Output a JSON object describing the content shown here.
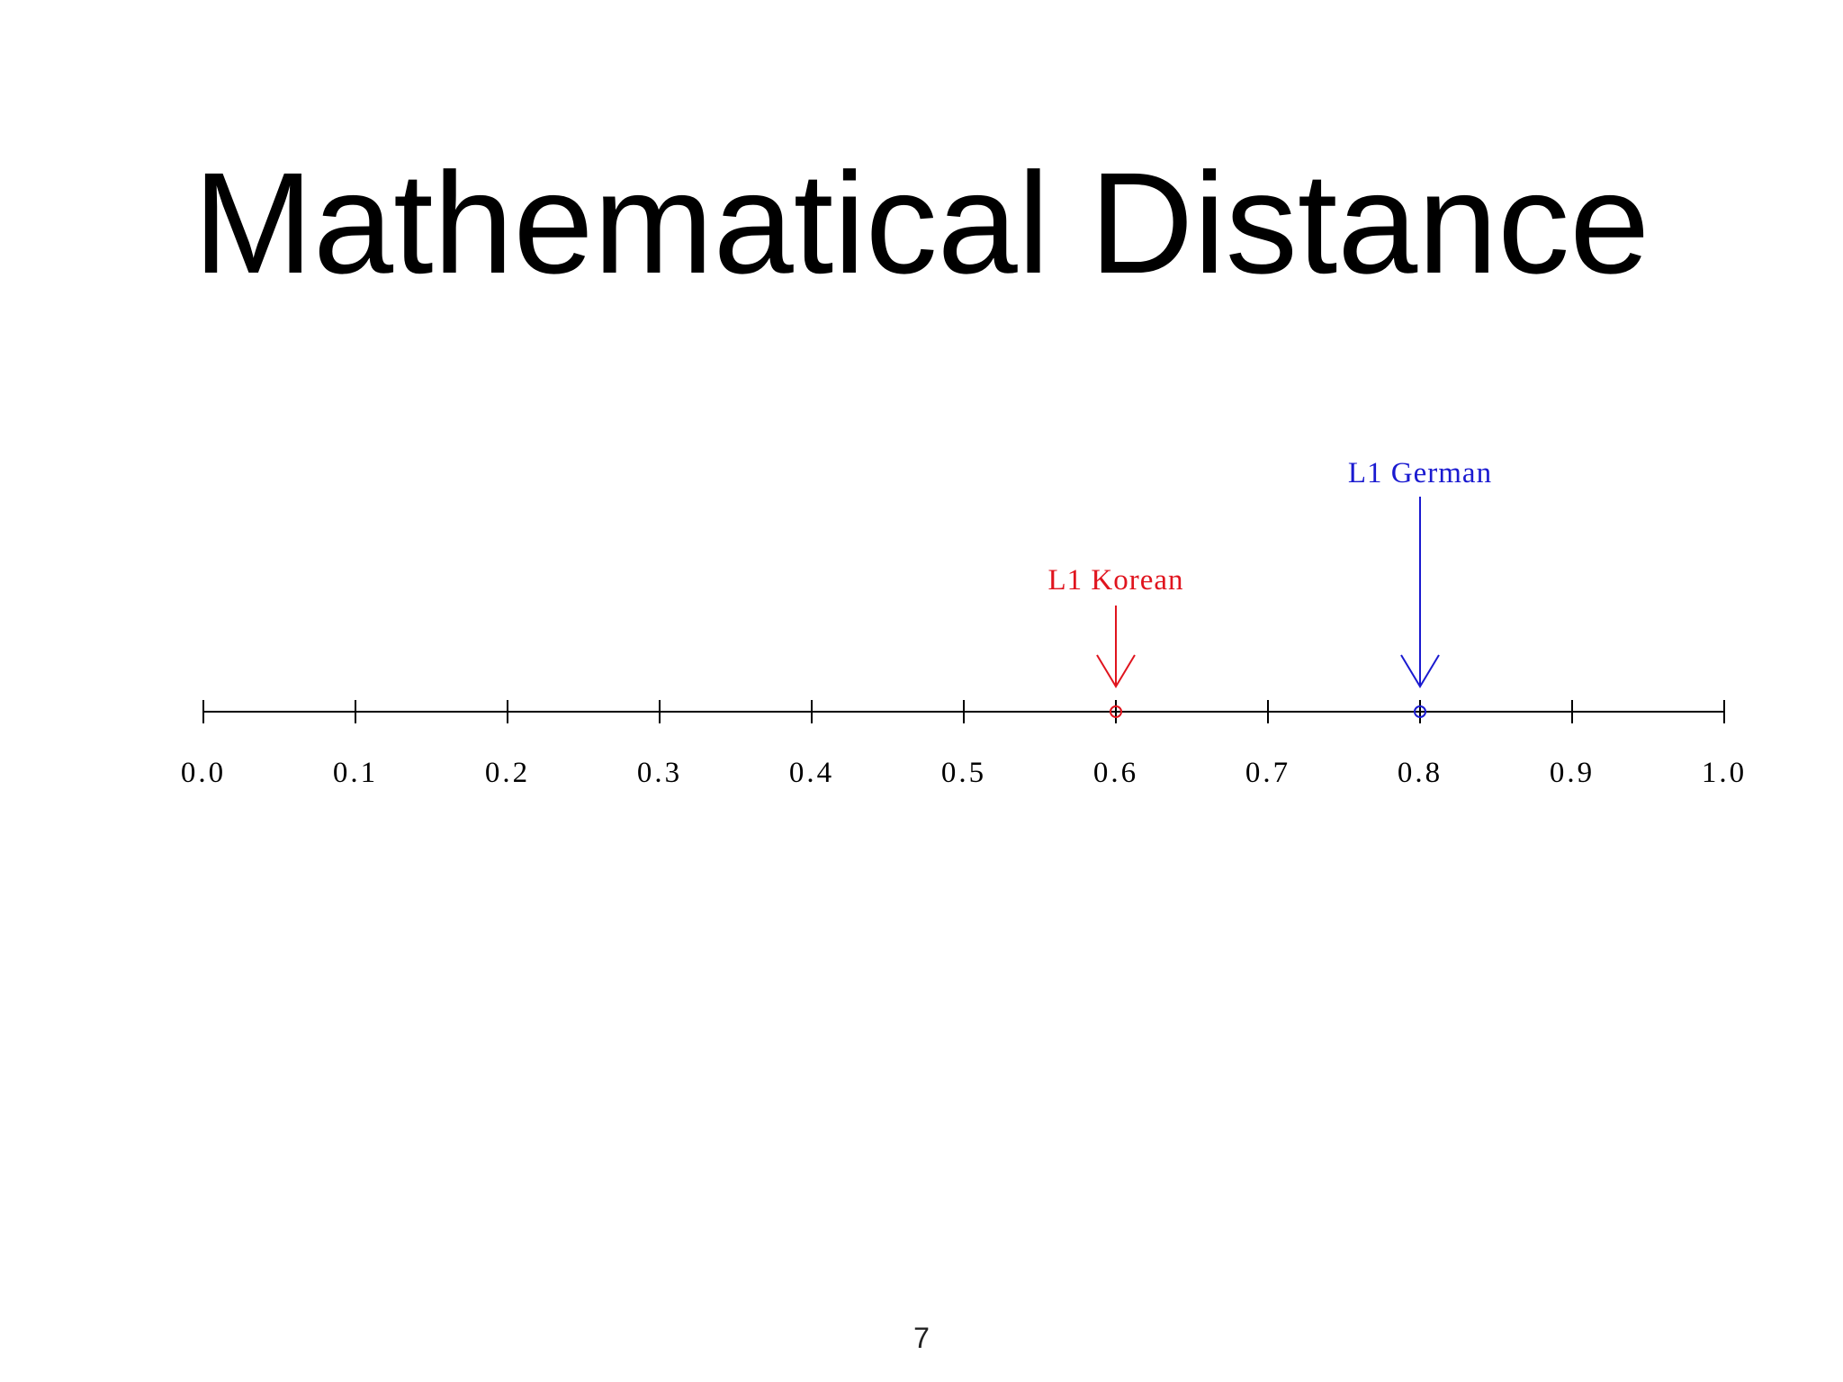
{
  "chart_data": {
    "type": "numberline",
    "title": "Mathematical Distance",
    "xlim": [
      0,
      1
    ],
    "xticks": [
      {
        "value": 0,
        "label": "0.0"
      },
      0.1,
      0.2,
      0.3,
      0.4,
      0.5,
      0.6,
      0.7,
      0.8,
      0.9,
      {
        "value": 1,
        "label": "1.0"
      }
    ],
    "series": [
      {
        "name": "L1 Korean",
        "color": "#e0141e",
        "x": 0.6
      },
      {
        "name": "L1 German",
        "color": "#1a1ad0",
        "x": 0.8
      }
    ]
  },
  "page_number": "7"
}
